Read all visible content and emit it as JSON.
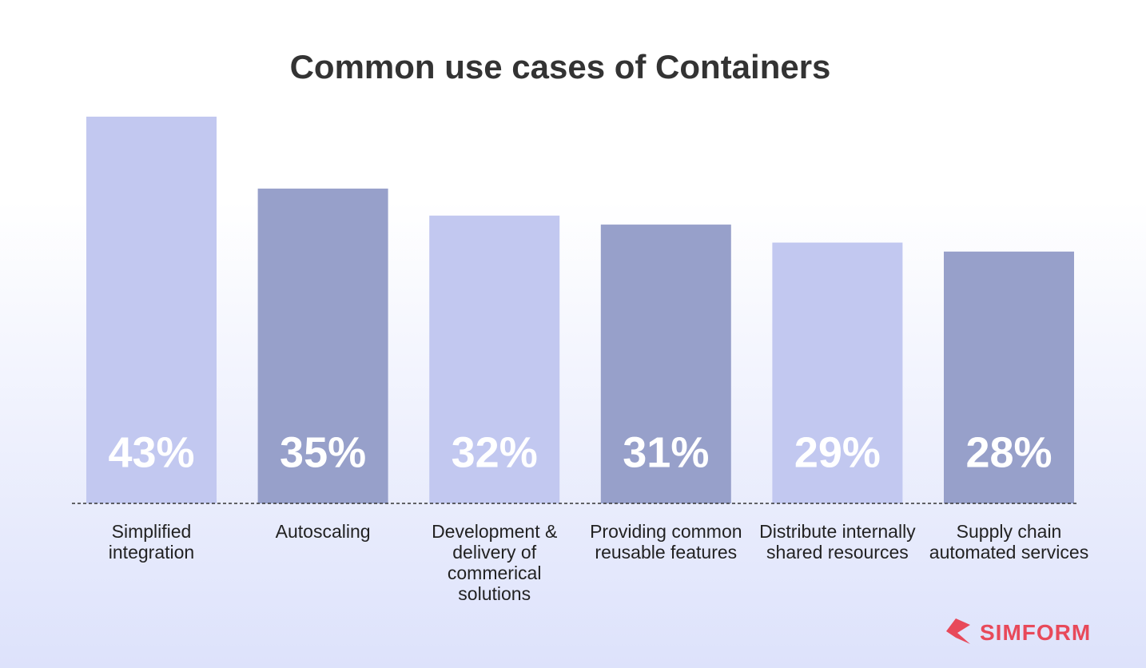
{
  "chart_data": {
    "type": "bar",
    "title": "Common use cases of Containers",
    "categories": [
      "Simplified integration",
      "Autoscaling",
      "Development & delivery of commerical solutions",
      "Providing common reusable features",
      "Distribute internally shared resources",
      "Supply chain automated services"
    ],
    "values": [
      43,
      35,
      32,
      31,
      29,
      28
    ],
    "value_labels": [
      "43%",
      "35%",
      "32%",
      "31%",
      "29%",
      "28%"
    ],
    "colors": [
      "#c2c8f0",
      "#97a0ca",
      "#c2c8f0",
      "#97a0ca",
      "#c2c8f0",
      "#97a0ca"
    ]
  },
  "brand": "SIMFORM"
}
